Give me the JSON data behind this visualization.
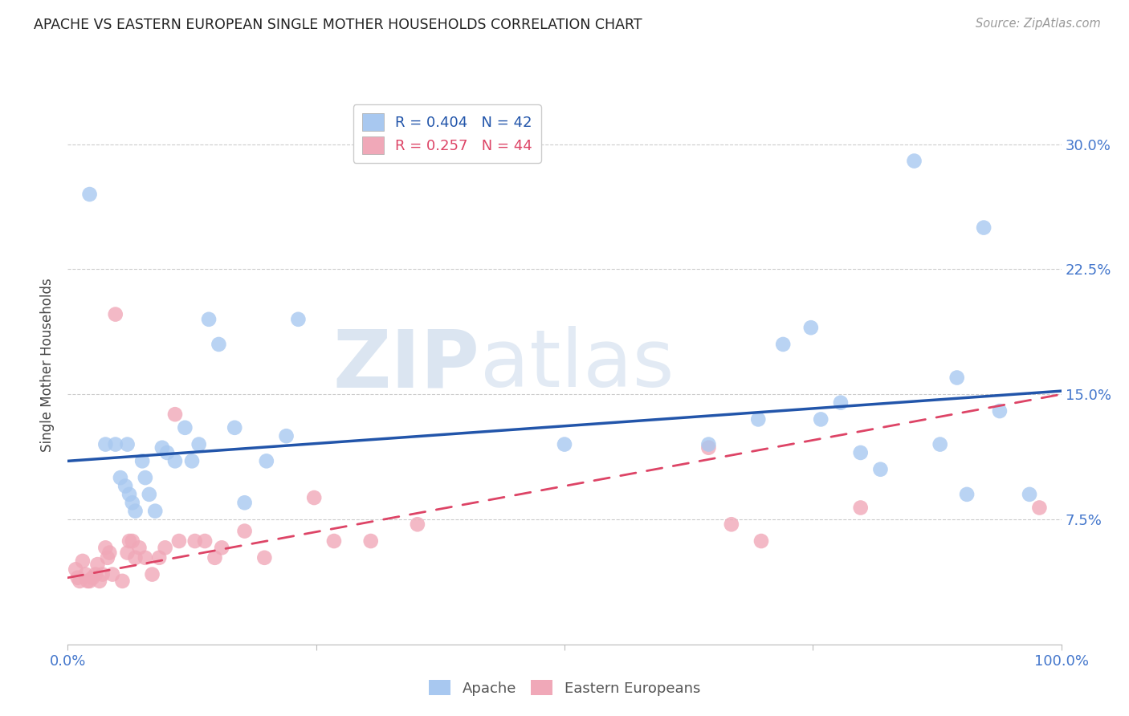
{
  "title": "APACHE VS EASTERN EUROPEAN SINGLE MOTHER HOUSEHOLDS CORRELATION CHART",
  "source": "Source: ZipAtlas.com",
  "ylabel": "Single Mother Households",
  "watermark_zip": "ZIP",
  "watermark_atlas": "atlas",
  "apache_R": 0.404,
  "apache_N": 42,
  "eastern_R": 0.257,
  "eastern_N": 44,
  "xlim": [
    0.0,
    1.0
  ],
  "ylim": [
    0.0,
    0.335
  ],
  "yticks": [
    0.075,
    0.15,
    0.225,
    0.3
  ],
  "yticklabels": [
    "7.5%",
    "15.0%",
    "22.5%",
    "30.0%"
  ],
  "apache_color": "#A8C8F0",
  "eastern_color": "#F0A8B8",
  "apache_line_color": "#2255AA",
  "eastern_line_color": "#DD4466",
  "background_color": "#FFFFFF",
  "grid_color": "#CCCCCC",
  "title_color": "#222222",
  "tick_color": "#4477CC",
  "legend_text_apache": "R = 0.404   N = 42",
  "legend_text_eastern": "R = 0.257   N = 44",
  "apache_x": [
    0.022,
    0.038,
    0.048,
    0.053,
    0.058,
    0.06,
    0.062,
    0.065,
    0.068,
    0.075,
    0.078,
    0.082,
    0.088,
    0.095,
    0.1,
    0.108,
    0.118,
    0.125,
    0.132,
    0.142,
    0.152,
    0.168,
    0.178,
    0.2,
    0.22,
    0.232,
    0.5,
    0.645,
    0.695,
    0.72,
    0.748,
    0.758,
    0.778,
    0.798,
    0.818,
    0.852,
    0.878,
    0.895,
    0.905,
    0.922,
    0.938,
    0.968
  ],
  "apache_y": [
    0.27,
    0.12,
    0.12,
    0.1,
    0.095,
    0.12,
    0.09,
    0.085,
    0.08,
    0.11,
    0.1,
    0.09,
    0.08,
    0.118,
    0.115,
    0.11,
    0.13,
    0.11,
    0.12,
    0.195,
    0.18,
    0.13,
    0.085,
    0.11,
    0.125,
    0.195,
    0.12,
    0.12,
    0.135,
    0.18,
    0.19,
    0.135,
    0.145,
    0.115,
    0.105,
    0.29,
    0.12,
    0.16,
    0.09,
    0.25,
    0.14,
    0.09
  ],
  "eastern_x": [
    0.008,
    0.01,
    0.012,
    0.015,
    0.018,
    0.02,
    0.022,
    0.025,
    0.028,
    0.03,
    0.032,
    0.035,
    0.038,
    0.04,
    0.042,
    0.045,
    0.048,
    0.055,
    0.06,
    0.062,
    0.065,
    0.068,
    0.072,
    0.078,
    0.085,
    0.092,
    0.098,
    0.108,
    0.112,
    0.128,
    0.138,
    0.148,
    0.155,
    0.178,
    0.198,
    0.248,
    0.268,
    0.305,
    0.352,
    0.645,
    0.668,
    0.698,
    0.798,
    0.978
  ],
  "eastern_y": [
    0.045,
    0.04,
    0.038,
    0.05,
    0.042,
    0.038,
    0.038,
    0.04,
    0.042,
    0.048,
    0.038,
    0.042,
    0.058,
    0.052,
    0.055,
    0.042,
    0.198,
    0.038,
    0.055,
    0.062,
    0.062,
    0.052,
    0.058,
    0.052,
    0.042,
    0.052,
    0.058,
    0.138,
    0.062,
    0.062,
    0.062,
    0.052,
    0.058,
    0.068,
    0.052,
    0.088,
    0.062,
    0.062,
    0.072,
    0.118,
    0.072,
    0.062,
    0.082,
    0.082
  ],
  "apache_trend_x": [
    0.0,
    1.0
  ],
  "apache_trend_y": [
    0.11,
    0.152
  ],
  "eastern_trend_x": [
    0.0,
    1.0
  ],
  "eastern_trend_y": [
    0.04,
    0.15
  ]
}
